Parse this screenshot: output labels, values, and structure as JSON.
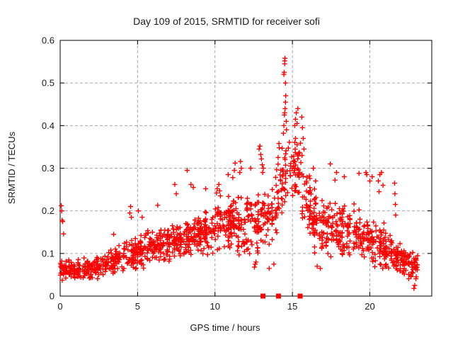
{
  "chart_data": {
    "type": "scatter",
    "title": "Day 109 of 2015, SRMTID for receiver sofi",
    "xlabel": "GPS time / hours",
    "ylabel": "SRMTID / TECUs",
    "xlim": [
      0,
      24
    ],
    "ylim": [
      0,
      0.6
    ],
    "xtick_values": [
      0,
      5,
      10,
      15,
      20
    ],
    "xtick_labels": [
      "0",
      "5",
      "10",
      "15",
      "20"
    ],
    "ytick_values": [
      0,
      0.1,
      0.2,
      0.3,
      0.4,
      0.5,
      0.6
    ],
    "ytick_labels": [
      "0",
      "0.1",
      "0.2",
      "0.3",
      "0.4",
      "0.5",
      "0.6"
    ],
    "grid": true,
    "legend": "none",
    "marker": "plus",
    "colors": {
      "points": "#ff0000",
      "grid": "#a8a8a8",
      "axis": "#000000",
      "text": "#1a1a1a",
      "background": "#ffffff"
    },
    "seed": 109,
    "point_bands": [
      [
        0.0,
        1.0,
        60,
        0.035,
        0.1,
        0.03,
        0.085
      ],
      [
        1.0,
        2.0,
        58,
        0.03,
        0.085,
        0.035,
        0.095
      ],
      [
        2.0,
        3.0,
        58,
        0.035,
        0.095,
        0.045,
        0.11
      ],
      [
        3.0,
        4.0,
        60,
        0.045,
        0.11,
        0.05,
        0.125
      ],
      [
        4.0,
        5.0,
        62,
        0.05,
        0.125,
        0.06,
        0.15
      ],
      [
        5.0,
        6.0,
        64,
        0.06,
        0.15,
        0.07,
        0.16
      ],
      [
        6.0,
        7.0,
        64,
        0.07,
        0.16,
        0.075,
        0.17
      ],
      [
        7.0,
        8.0,
        66,
        0.075,
        0.17,
        0.08,
        0.185
      ],
      [
        8.0,
        9.0,
        68,
        0.08,
        0.185,
        0.09,
        0.2
      ],
      [
        9.0,
        10.0,
        68,
        0.09,
        0.2,
        0.1,
        0.22
      ],
      [
        10.0,
        11.0,
        70,
        0.1,
        0.22,
        0.1,
        0.24
      ],
      [
        11.0,
        12.0,
        70,
        0.1,
        0.24,
        0.09,
        0.25
      ],
      [
        12.0,
        13.0,
        62,
        0.08,
        0.25,
        0.07,
        0.27
      ],
      [
        13.0,
        14.0,
        55,
        0.07,
        0.27,
        0.13,
        0.3
      ],
      [
        14.0,
        14.8,
        45,
        0.15,
        0.36,
        0.22,
        0.38
      ],
      [
        14.8,
        15.6,
        45,
        0.22,
        0.4,
        0.2,
        0.38
      ],
      [
        15.6,
        16.2,
        40,
        0.15,
        0.36,
        0.12,
        0.28
      ],
      [
        16.2,
        17.0,
        55,
        0.1,
        0.26,
        0.09,
        0.24
      ],
      [
        17.0,
        18.0,
        60,
        0.09,
        0.24,
        0.08,
        0.23
      ],
      [
        18.0,
        19.0,
        60,
        0.08,
        0.23,
        0.08,
        0.22
      ],
      [
        19.0,
        20.0,
        60,
        0.08,
        0.22,
        0.07,
        0.2
      ],
      [
        20.0,
        21.0,
        60,
        0.07,
        0.2,
        0.06,
        0.17
      ],
      [
        21.0,
        22.0,
        62,
        0.05,
        0.16,
        0.045,
        0.14
      ],
      [
        22.0,
        23.1,
        75,
        0.04,
        0.135,
        0.035,
        0.1
      ]
    ],
    "spike_points": [
      [
        0.07,
        0.212
      ],
      [
        0.1,
        0.2
      ],
      [
        0.13,
        0.178
      ],
      [
        0.16,
        0.175
      ],
      [
        0.22,
        0.146
      ],
      [
        3.45,
        0.145
      ],
      [
        4.5,
        0.195
      ],
      [
        4.55,
        0.21
      ],
      [
        4.6,
        0.185
      ],
      [
        5.05,
        0.2
      ],
      [
        5.3,
        0.185
      ],
      [
        6.3,
        0.213
      ],
      [
        7.4,
        0.262
      ],
      [
        7.5,
        0.24
      ],
      [
        8.2,
        0.295
      ],
      [
        8.45,
        0.262
      ],
      [
        8.6,
        0.255
      ],
      [
        9.4,
        0.252
      ],
      [
        10.1,
        0.242
      ],
      [
        10.15,
        0.252
      ],
      [
        10.25,
        0.262
      ],
      [
        10.3,
        0.247
      ],
      [
        10.35,
        0.235
      ],
      [
        10.85,
        0.285
      ],
      [
        11.15,
        0.278
      ],
      [
        11.25,
        0.295
      ],
      [
        11.3,
        0.312
      ],
      [
        11.6,
        0.29
      ],
      [
        11.65,
        0.316
      ],
      [
        11.7,
        0.3
      ],
      [
        12.3,
        0.3
      ],
      [
        12.55,
        0.068
      ],
      [
        12.6,
        0.075
      ],
      [
        12.65,
        0.08
      ],
      [
        12.85,
        0.345
      ],
      [
        12.9,
        0.352
      ],
      [
        12.95,
        0.332
      ],
      [
        13.0,
        0.322
      ],
      [
        13.05,
        0.308
      ],
      [
        13.08,
        0.29
      ],
      [
        13.12,
        0.3
      ],
      [
        13.5,
        0.065
      ],
      [
        13.8,
        0.075
      ],
      [
        14.42,
        0.382
      ],
      [
        14.45,
        0.4
      ],
      [
        14.45,
        0.52
      ],
      [
        14.47,
        0.525
      ],
      [
        14.5,
        0.545
      ],
      [
        14.5,
        0.552
      ],
      [
        14.52,
        0.558
      ],
      [
        14.55,
        0.5
      ],
      [
        14.48,
        0.425
      ],
      [
        14.5,
        0.43
      ],
      [
        14.53,
        0.44
      ],
      [
        14.55,
        0.455
      ],
      [
        14.57,
        0.47
      ],
      [
        14.6,
        0.41
      ],
      [
        14.62,
        0.39
      ],
      [
        15.15,
        0.4
      ],
      [
        15.2,
        0.415
      ],
      [
        15.25,
        0.43
      ],
      [
        15.3,
        0.405
      ],
      [
        15.35,
        0.44
      ],
      [
        15.2,
        0.37
      ],
      [
        15.3,
        0.355
      ],
      [
        15.6,
        0.42
      ],
      [
        15.65,
        0.395
      ],
      [
        15.7,
        0.37
      ],
      [
        15.75,
        0.345
      ],
      [
        15.62,
        0.33
      ],
      [
        16.35,
        0.3
      ],
      [
        16.5,
        0.27
      ],
      [
        16.6,
        0.07
      ],
      [
        16.8,
        0.065
      ],
      [
        17.45,
        0.31
      ],
      [
        17.75,
        0.272
      ],
      [
        17.85,
        0.29
      ],
      [
        18.35,
        0.28
      ],
      [
        19.3,
        0.288
      ],
      [
        19.75,
        0.29
      ],
      [
        19.8,
        0.285
      ],
      [
        20.0,
        0.27
      ],
      [
        20.15,
        0.28
      ],
      [
        20.55,
        0.27
      ],
      [
        20.65,
        0.285
      ],
      [
        20.75,
        0.29
      ],
      [
        20.85,
        0.26
      ],
      [
        20.6,
        0.245
      ],
      [
        21.6,
        0.265
      ],
      [
        21.62,
        0.24
      ],
      [
        21.65,
        0.215
      ],
      [
        21.67,
        0.19
      ],
      [
        22.85,
        0.018
      ],
      [
        22.9,
        0.025
      ]
    ],
    "axis_marker_squares": {
      "x": [
        13.1,
        14.1,
        15.5
      ],
      "y": 0
    }
  }
}
